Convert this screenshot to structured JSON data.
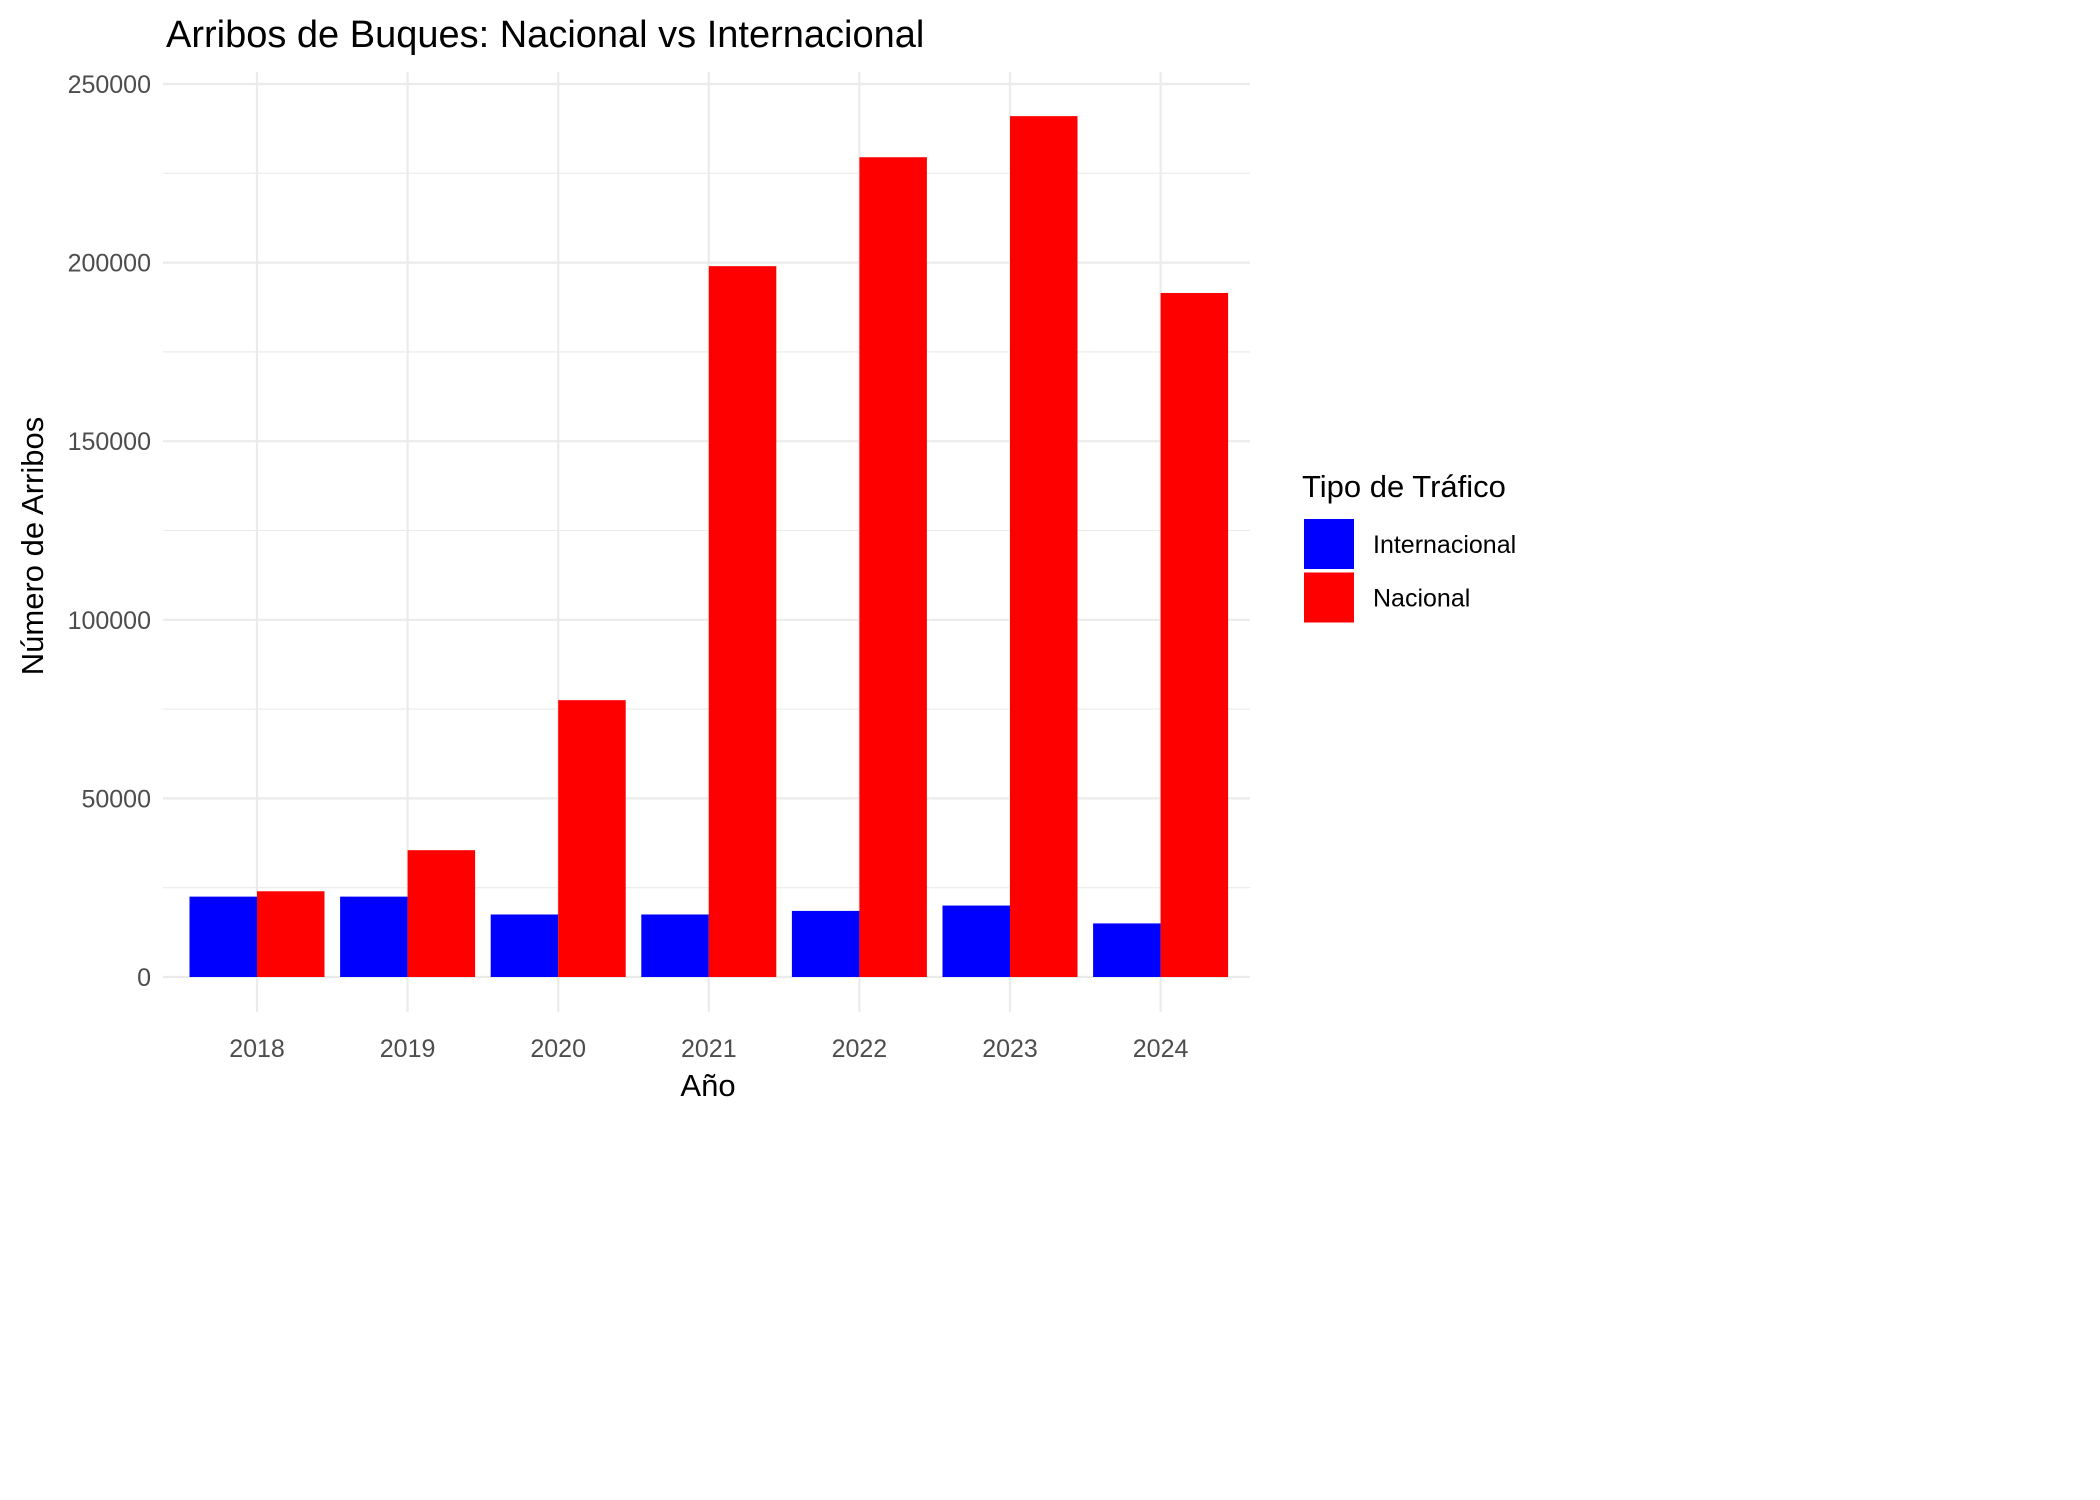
{
  "chart_data": {
    "type": "bar",
    "title": "Arribos de Buques: Nacional vs Internacional",
    "xlabel": "Año",
    "ylabel": "Número de Arribos",
    "categories": [
      "2018",
      "2019",
      "2020",
      "2021",
      "2022",
      "2023",
      "2024"
    ],
    "series": [
      {
        "name": "Internacional",
        "color": "#0000ff",
        "values": [
          22500,
          22500,
          17500,
          17500,
          18500,
          20000,
          15000
        ]
      },
      {
        "name": "Nacional",
        "color": "#ff0000",
        "values": [
          24000,
          35500,
          77500,
          199000,
          229500,
          241000,
          191500
        ]
      }
    ],
    "ylim": [
      0,
      250000
    ],
    "yticks": [
      0,
      50000,
      100000,
      150000,
      200000,
      250000
    ],
    "ytick_labels": [
      "0",
      "50000",
      "100000",
      "150000",
      "200000",
      "250000"
    ],
    "grid": true,
    "legend": {
      "title": "Tipo de Tráfico",
      "position": "right"
    }
  }
}
